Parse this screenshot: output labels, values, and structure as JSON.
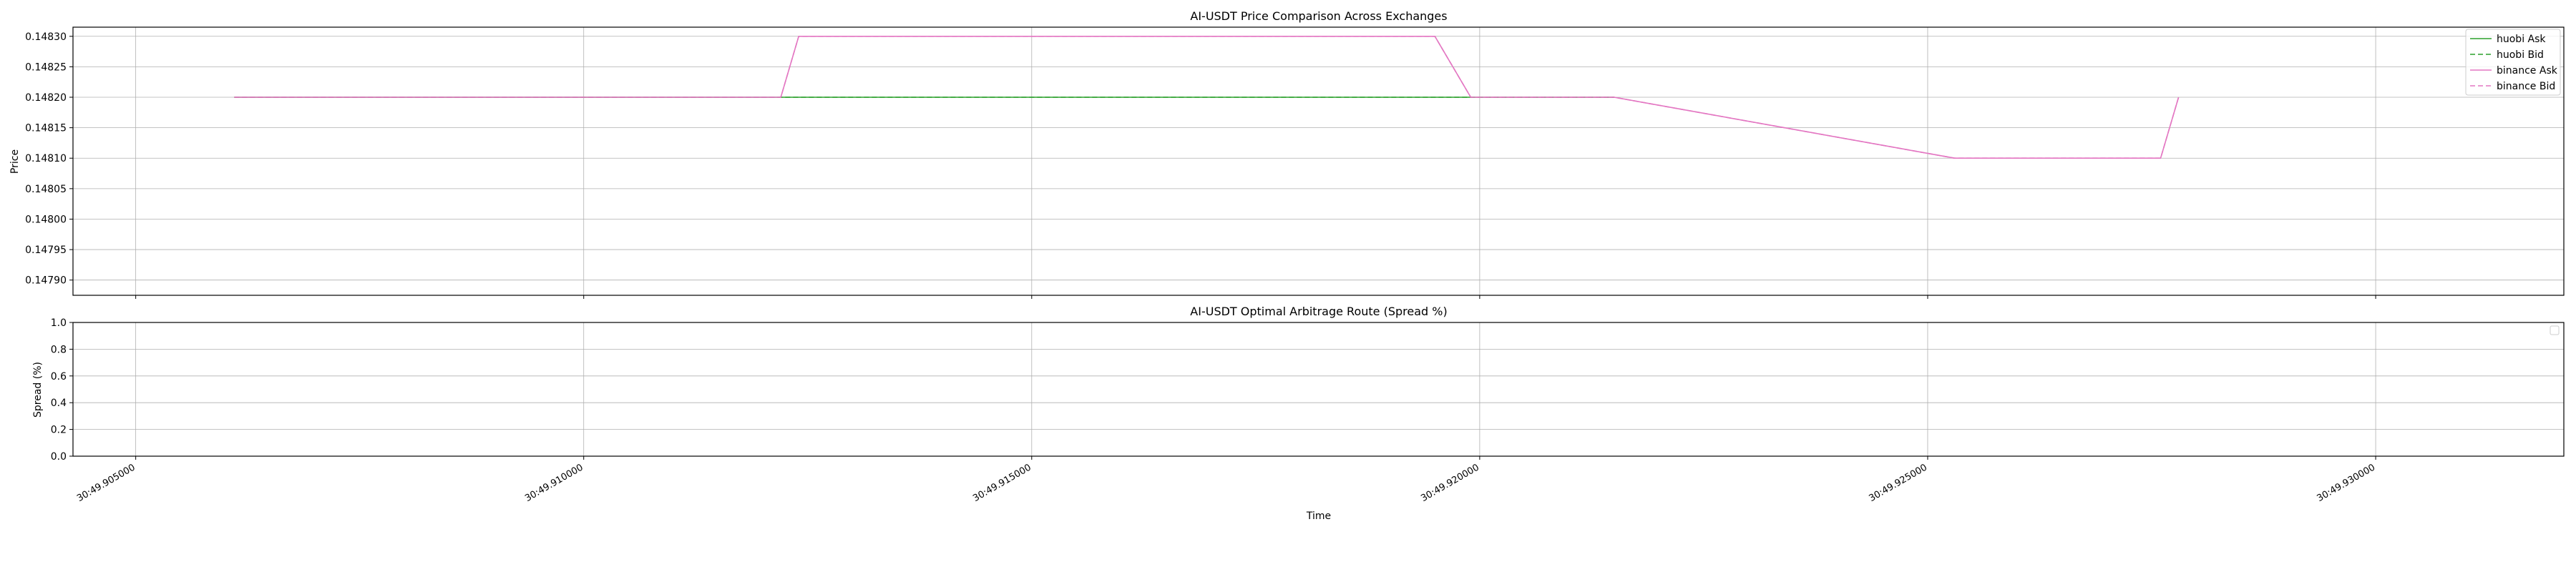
{
  "chart_data": [
    {
      "type": "line",
      "title": "AI-USDT Price Comparison Across Exchanges",
      "ylabel": "Price",
      "xlim": [
        49.9043,
        49.9321
      ],
      "ylim": [
        0.147875,
        0.148315
      ],
      "x_ticks": [
        49.905,
        49.91,
        49.915,
        49.92,
        49.925,
        49.93
      ],
      "y_ticks": [
        0.1479,
        0.14795,
        0.148,
        0.14805,
        0.1481,
        0.14815,
        0.1482,
        0.14825,
        0.1483
      ],
      "y_tick_labels": [
        "0.14790",
        "0.14795",
        "0.14800",
        "0.14805",
        "0.14810",
        "0.14815",
        "0.14820",
        "0.14825",
        "0.14830"
      ],
      "grid": true,
      "legend_position": "top-right",
      "series": [
        {
          "name": "huobi Ask",
          "color": "#2ca02c",
          "style": "solid",
          "x": [
            49.9061,
            49.9122,
            49.92,
            49.9215
          ],
          "y": [
            0.1482,
            0.1482,
            0.1482,
            0.1482
          ]
        },
        {
          "name": "huobi Bid",
          "color": "#2ca02c",
          "style": "dashed",
          "x": [
            49.9061,
            49.9122,
            49.92,
            49.9215
          ],
          "y": [
            0.1482,
            0.1482,
            0.1482,
            0.1482
          ]
        },
        {
          "name": "binance Ask",
          "color": "#e377c2",
          "style": "solid",
          "x": [
            49.9061,
            49.9122,
            49.9124,
            49.9195,
            49.9199,
            49.9215,
            49.9253,
            49.9276,
            49.9278
          ],
          "y": [
            0.1482,
            0.1482,
            0.1483,
            0.1483,
            0.1482,
            0.1482,
            0.1481,
            0.1481,
            0.1482
          ]
        },
        {
          "name": "binance Bid",
          "color": "#e377c2",
          "style": "dashed",
          "x": [
            49.9061,
            49.9122,
            49.9124,
            49.9195,
            49.9199,
            49.9215,
            49.9253,
            49.9276,
            49.9278
          ],
          "y": [
            0.1482,
            0.1482,
            0.1483,
            0.1483,
            0.1482,
            0.1482,
            0.1481,
            0.1481,
            0.1482
          ]
        }
      ]
    },
    {
      "type": "line",
      "title": "AI-USDT Optimal Arbitrage Route (Spread %)",
      "xlabel": "Time",
      "ylabel": "Spread (%)",
      "xlim": [
        49.9043,
        49.9321
      ],
      "ylim": [
        0.0,
        1.0
      ],
      "x_ticks": [
        49.905,
        49.91,
        49.915,
        49.92,
        49.925,
        49.93
      ],
      "x_tick_labels": [
        "30:49.905000",
        "30:49.910000",
        "30:49.915000",
        "30:49.920000",
        "30:49.925000",
        "30:49.930000"
      ],
      "y_ticks": [
        0.0,
        0.2,
        0.4,
        0.6,
        0.8,
        1.0
      ],
      "y_tick_labels": [
        "0.0",
        "0.2",
        "0.4",
        "0.6",
        "0.8",
        "1.0"
      ],
      "grid": true,
      "legend_position": "top-right",
      "series": []
    }
  ]
}
